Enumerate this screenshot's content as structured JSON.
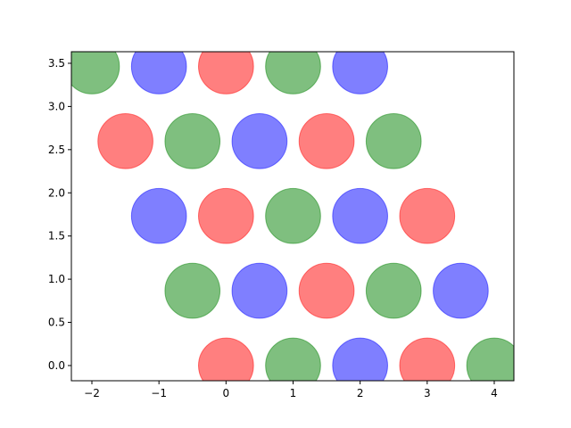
{
  "chart_data": {
    "type": "scatter",
    "title": "",
    "xlabel": "",
    "ylabel": "",
    "xlim": [
      -2.306,
      4.293
    ],
    "ylim": [
      -0.176,
      3.634
    ],
    "xticks": [
      -2,
      -1,
      0,
      1,
      2,
      3,
      4
    ],
    "xtick_labels": [
      "−2",
      "−1",
      "0",
      "1",
      "2",
      "3",
      "4"
    ],
    "yticks": [
      0.0,
      0.5,
      1.0,
      1.5,
      2.0,
      2.5,
      3.0,
      3.5
    ],
    "ytick_labels": [
      "0.0",
      "0.5",
      "1.0",
      "1.5",
      "2.0",
      "2.5",
      "3.0",
      "3.5"
    ],
    "grid": false,
    "marker_radius_x_units": 0.41,
    "colors": {
      "red": "#ff0000",
      "green": "#008000",
      "blue": "#0000ff"
    },
    "alpha": 0.5,
    "points": [
      {
        "x": 0,
        "y": 0,
        "color": "red"
      },
      {
        "x": 1,
        "y": 0,
        "color": "green"
      },
      {
        "x": 2,
        "y": 0,
        "color": "blue"
      },
      {
        "x": 3,
        "y": 0,
        "color": "red"
      },
      {
        "x": 4,
        "y": 0,
        "color": "green"
      },
      {
        "x": -0.5,
        "y": 0.866,
        "color": "green"
      },
      {
        "x": 0.5,
        "y": 0.866,
        "color": "blue"
      },
      {
        "x": 1.5,
        "y": 0.866,
        "color": "red"
      },
      {
        "x": 2.5,
        "y": 0.866,
        "color": "green"
      },
      {
        "x": 3.5,
        "y": 0.866,
        "color": "blue"
      },
      {
        "x": -1,
        "y": 1.732,
        "color": "blue"
      },
      {
        "x": 0,
        "y": 1.732,
        "color": "red"
      },
      {
        "x": 1,
        "y": 1.732,
        "color": "green"
      },
      {
        "x": 2,
        "y": 1.732,
        "color": "blue"
      },
      {
        "x": 3,
        "y": 1.732,
        "color": "red"
      },
      {
        "x": -1.5,
        "y": 2.598,
        "color": "red"
      },
      {
        "x": -0.5,
        "y": 2.598,
        "color": "green"
      },
      {
        "x": 0.5,
        "y": 2.598,
        "color": "blue"
      },
      {
        "x": 1.5,
        "y": 2.598,
        "color": "red"
      },
      {
        "x": 2.5,
        "y": 2.598,
        "color": "green"
      },
      {
        "x": -2,
        "y": 3.464,
        "color": "green"
      },
      {
        "x": -1,
        "y": 3.464,
        "color": "blue"
      },
      {
        "x": 0,
        "y": 3.464,
        "color": "red"
      },
      {
        "x": 1,
        "y": 3.464,
        "color": "green"
      },
      {
        "x": 2,
        "y": 3.464,
        "color": "blue"
      }
    ]
  }
}
